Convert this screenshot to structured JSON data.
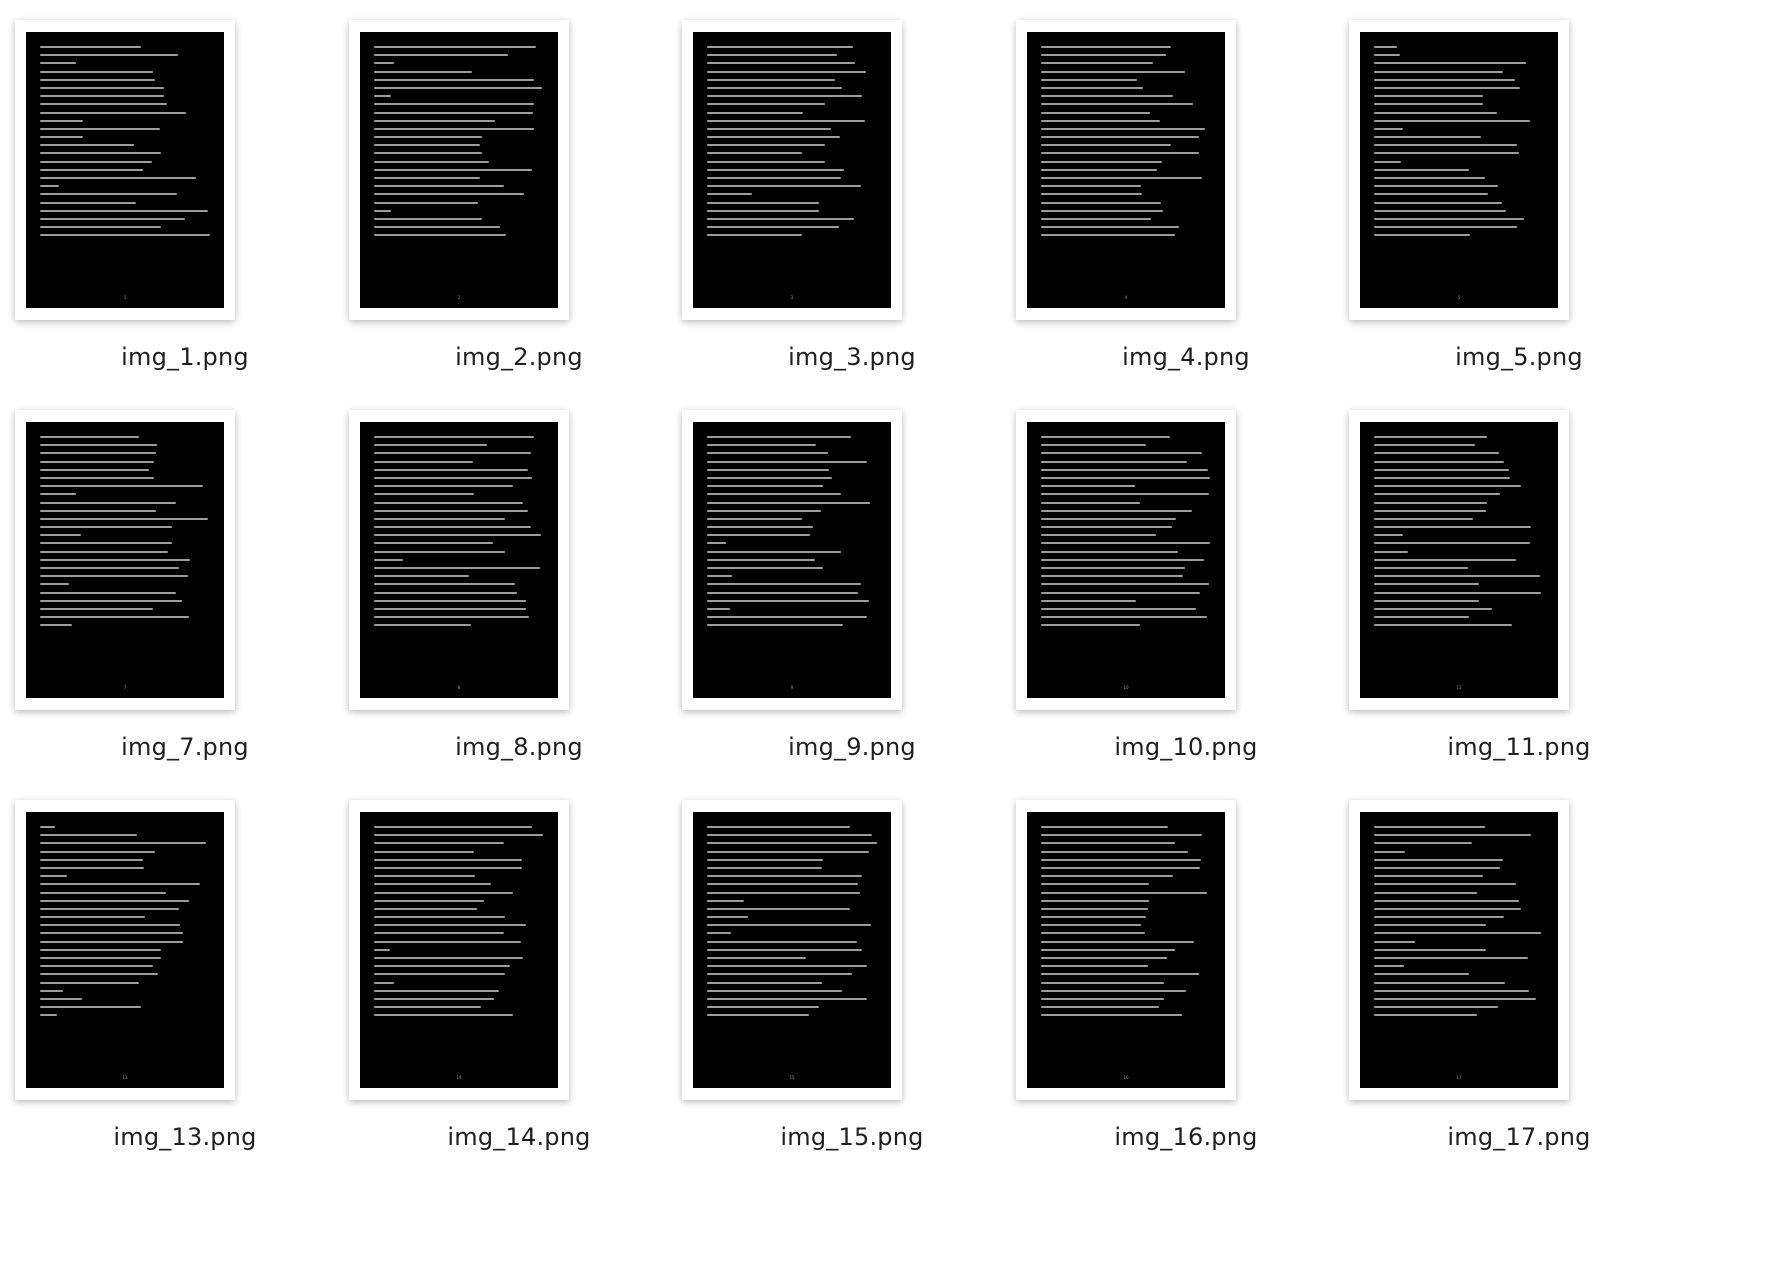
{
  "files": [
    {
      "name": "img_1.png",
      "page": "1"
    },
    {
      "name": "img_2.png",
      "page": "2"
    },
    {
      "name": "img_3.png",
      "page": "3"
    },
    {
      "name": "img_4.png",
      "page": "4"
    },
    {
      "name": "img_5.png",
      "page": "5"
    },
    {
      "name": "img_7.png",
      "page": "7"
    },
    {
      "name": "img_8.png",
      "page": "8"
    },
    {
      "name": "img_9.png",
      "page": "9"
    },
    {
      "name": "img_10.png",
      "page": "10"
    },
    {
      "name": "img_11.png",
      "page": "11"
    },
    {
      "name": "img_13.png",
      "page": "13"
    },
    {
      "name": "img_14.png",
      "page": "14"
    },
    {
      "name": "img_15.png",
      "page": "15"
    },
    {
      "name": "img_16.png",
      "page": "16"
    },
    {
      "name": "img_17.png",
      "page": "17"
    }
  ],
  "colors": {
    "background": "#ffffff",
    "page_fill": "#000000",
    "text_line": "#b9b9b9",
    "label": "#1f1f1f"
  }
}
